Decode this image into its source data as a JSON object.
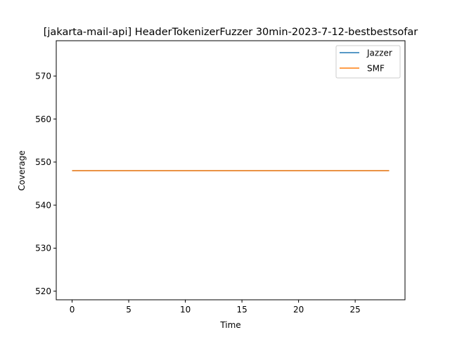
{
  "chart_data": {
    "type": "line",
    "title": "[jakarta-mail-api] HeaderTokenizerFuzzer 30min-2023-7-12-bestbestsofar",
    "xlabel": "Time",
    "ylabel": "Coverage",
    "xlim": [
      -1.4,
      29.4
    ],
    "ylim": [
      518,
      578.2
    ],
    "x_ticks": [
      0,
      5,
      10,
      15,
      20,
      25
    ],
    "y_ticks": [
      520,
      530,
      540,
      550,
      560,
      570
    ],
    "grid": false,
    "legend_position": "top-right",
    "series": [
      {
        "name": "Jazzer",
        "color": "#1f77b4",
        "x": [
          0,
          28
        ],
        "y": [
          548,
          548
        ]
      },
      {
        "name": "SMF",
        "color": "#ff7f0e",
        "x": [
          0,
          28
        ],
        "y": [
          548,
          548
        ]
      }
    ]
  }
}
